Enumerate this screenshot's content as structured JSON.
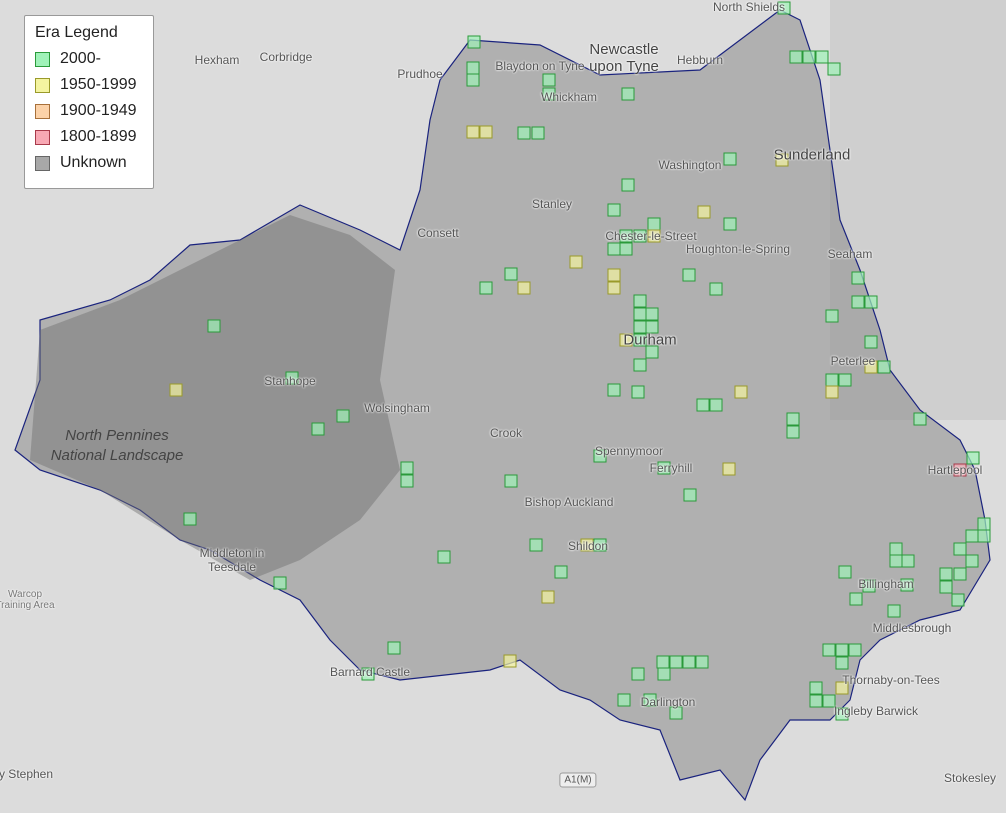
{
  "legend": {
    "title": "Era Legend",
    "items": [
      {
        "label": "2000-",
        "fill": "#9ff2b8",
        "stroke": "#2a9a3a"
      },
      {
        "label": "1950-1999",
        "fill": "#f4f4a0",
        "stroke": "#9a9a2a"
      },
      {
        "label": "1900-1949",
        "fill": "#fcd2a8",
        "stroke": "#a8703a"
      },
      {
        "label": "1800-1899",
        "fill": "#f8a8b4",
        "stroke": "#a83a4a"
      },
      {
        "label": "Unknown",
        "fill": "#a8a8a8",
        "stroke": "#666666"
      }
    ]
  },
  "places": [
    "North Shields",
    "Newcastle upon Tyne",
    "Hexham",
    "Corbridge",
    "Prudhoe",
    "Blaydon on Tyne",
    "Whickham",
    "Hebburn",
    "Washington",
    "Sunderland",
    "Stanley",
    "Consett",
    "Chester-le-Street",
    "Houghton-le-Spring",
    "Seaham",
    "Durham",
    "Peterlee",
    "Wolsingham",
    "Stanhope",
    "Crook",
    "Spennymoor",
    "Ferryhill",
    "Hartlepool",
    "Bishop Auckland",
    "Shildon",
    "Middleton in Teesdale",
    "Billingham",
    "Middlesbrough",
    "Barnard Castle",
    "Darlington",
    "Thornaby-on-Tees",
    "Ingleby Barwick",
    "Stokesley",
    "y Stephen"
  ],
  "park": "North Pennines National Landscape",
  "training": "Warcop Training Area",
  "road": "A1(M)",
  "colors": {
    "boundary": "#1a237e",
    "region": "#8c8c8c"
  }
}
